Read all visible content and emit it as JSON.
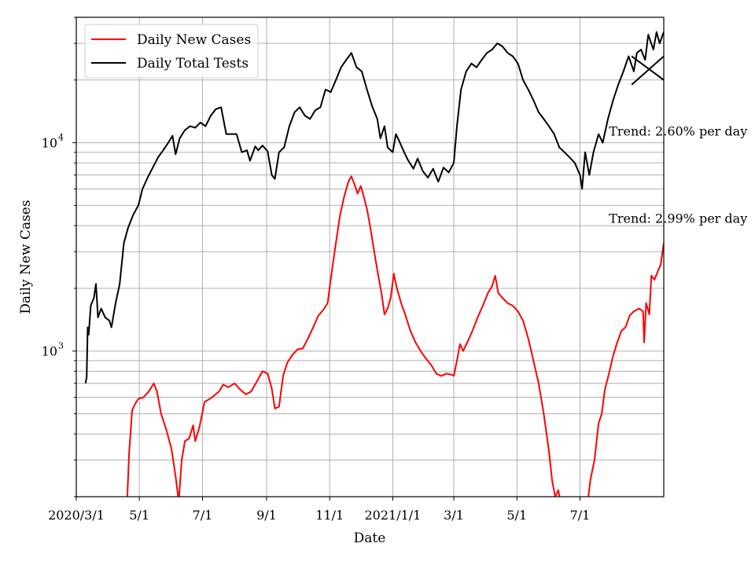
{
  "chart_data": {
    "type": "line",
    "title": "",
    "xlabel": "Date",
    "ylabel": "Daily New Cases",
    "yscale": "log",
    "ylim": [
      200,
      40000
    ],
    "xlim": [
      "2020-03-01",
      "2021-09-20"
    ],
    "grid": true,
    "legend_position": "top-left",
    "x_ticks": [
      {
        "date": "2020-03-01",
        "label": "2020/3/1"
      },
      {
        "date": "2020-05-01",
        "label": "5/1"
      },
      {
        "date": "2020-07-01",
        "label": "7/1"
      },
      {
        "date": "2020-09-01",
        "label": "9/1"
      },
      {
        "date": "2020-11-01",
        "label": "11/1"
      },
      {
        "date": "2021-01-01",
        "label": "2021/1/1"
      },
      {
        "date": "2021-03-01",
        "label": "3/1"
      },
      {
        "date": "2021-05-01",
        "label": "5/1"
      },
      {
        "date": "2021-07-01",
        "label": "7/1"
      }
    ],
    "y_ticks": [
      {
        "value": 1000,
        "base": "10",
        "exp": "3"
      },
      {
        "value": 10000,
        "base": "10",
        "exp": "4"
      }
    ],
    "series": [
      {
        "name": "Daily New Cases",
        "color": "#ff0000",
        "points": [
          [
            "2020-04-19",
            180
          ],
          [
            "2020-04-21",
            320
          ],
          [
            "2020-04-24",
            520
          ],
          [
            "2020-04-27",
            560
          ],
          [
            "2020-04-30",
            590
          ],
          [
            "2020-05-05",
            600
          ],
          [
            "2020-05-10",
            640
          ],
          [
            "2020-05-15",
            700
          ],
          [
            "2020-05-18",
            640
          ],
          [
            "2020-05-22",
            500
          ],
          [
            "2020-05-27",
            420
          ],
          [
            "2020-06-01",
            340
          ],
          [
            "2020-06-05",
            250
          ],
          [
            "2020-06-08",
            190
          ],
          [
            "2020-06-11",
            300
          ],
          [
            "2020-06-14",
            370
          ],
          [
            "2020-06-18",
            380
          ],
          [
            "2020-06-22",
            440
          ],
          [
            "2020-06-24",
            370
          ],
          [
            "2020-06-28",
            430
          ],
          [
            "2020-07-03",
            570
          ],
          [
            "2020-07-08",
            590
          ],
          [
            "2020-07-12",
            610
          ],
          [
            "2020-07-17",
            640
          ],
          [
            "2020-07-21",
            690
          ],
          [
            "2020-07-26",
            670
          ],
          [
            "2020-08-01",
            700
          ],
          [
            "2020-08-07",
            650
          ],
          [
            "2020-08-12",
            620
          ],
          [
            "2020-08-17",
            640
          ],
          [
            "2020-08-23",
            720
          ],
          [
            "2020-08-28",
            800
          ],
          [
            "2020-09-02",
            780
          ],
          [
            "2020-09-06",
            660
          ],
          [
            "2020-09-09",
            530
          ],
          [
            "2020-09-13",
            540
          ],
          [
            "2020-09-17",
            760
          ],
          [
            "2020-09-21",
            880
          ],
          [
            "2020-09-26",
            960
          ],
          [
            "2020-10-01",
            1020
          ],
          [
            "2020-10-06",
            1030
          ],
          [
            "2020-10-11",
            1150
          ],
          [
            "2020-10-16",
            1300
          ],
          [
            "2020-10-21",
            1480
          ],
          [
            "2020-10-26",
            1580
          ],
          [
            "2020-10-30",
            1700
          ],
          [
            "2020-11-03",
            2400
          ],
          [
            "2020-11-07",
            3300
          ],
          [
            "2020-11-11",
            4500
          ],
          [
            "2020-11-15",
            5500
          ],
          [
            "2020-11-19",
            6500
          ],
          [
            "2020-11-22",
            6900
          ],
          [
            "2020-11-25",
            6300
          ],
          [
            "2020-11-28",
            5700
          ],
          [
            "2020-12-01",
            6200
          ],
          [
            "2020-12-04",
            5500
          ],
          [
            "2020-12-07",
            4800
          ],
          [
            "2020-12-10",
            4000
          ],
          [
            "2020-12-14",
            3000
          ],
          [
            "2020-12-18",
            2300
          ],
          [
            "2020-12-21",
            1900
          ],
          [
            "2020-12-24",
            1500
          ],
          [
            "2020-12-27",
            1600
          ],
          [
            "2020-12-30",
            1800
          ],
          [
            "2021-01-02",
            2350
          ],
          [
            "2021-01-05",
            2000
          ],
          [
            "2021-01-09",
            1700
          ],
          [
            "2021-01-13",
            1500
          ],
          [
            "2021-01-18",
            1250
          ],
          [
            "2021-01-23",
            1100
          ],
          [
            "2021-01-28",
            1000
          ],
          [
            "2021-02-02",
            920
          ],
          [
            "2021-02-07",
            860
          ],
          [
            "2021-02-12",
            780
          ],
          [
            "2021-02-17",
            760
          ],
          [
            "2021-02-22",
            780
          ],
          [
            "2021-02-27",
            770
          ],
          [
            "2021-03-01",
            760
          ],
          [
            "2021-03-04",
            900
          ],
          [
            "2021-03-07",
            1080
          ],
          [
            "2021-03-10",
            1000
          ],
          [
            "2021-03-14",
            1100
          ],
          [
            "2021-03-19",
            1250
          ],
          [
            "2021-03-24",
            1450
          ],
          [
            "2021-03-29",
            1650
          ],
          [
            "2021-04-03",
            1900
          ],
          [
            "2021-04-07",
            2050
          ],
          [
            "2021-04-10",
            2300
          ],
          [
            "2021-04-13",
            1900
          ],
          [
            "2021-04-17",
            1800
          ],
          [
            "2021-04-22",
            1700
          ],
          [
            "2021-04-27",
            1650
          ],
          [
            "2021-05-02",
            1550
          ],
          [
            "2021-05-07",
            1400
          ],
          [
            "2021-05-12",
            1150
          ],
          [
            "2021-05-17",
            900
          ],
          [
            "2021-05-22",
            700
          ],
          [
            "2021-05-27",
            500
          ],
          [
            "2021-06-01",
            330
          ],
          [
            "2021-06-04",
            240
          ],
          [
            "2021-06-07",
            200
          ],
          [
            "2021-06-10",
            215
          ],
          [
            "2021-06-13",
            180
          ],
          [
            "2021-07-08",
            180
          ],
          [
            "2021-07-11",
            240
          ],
          [
            "2021-07-15",
            300
          ],
          [
            "2021-07-19",
            450
          ],
          [
            "2021-07-22",
            500
          ],
          [
            "2021-07-25",
            650
          ],
          [
            "2021-07-29",
            780
          ],
          [
            "2021-08-02",
            950
          ],
          [
            "2021-08-06",
            1100
          ],
          [
            "2021-08-10",
            1250
          ],
          [
            "2021-08-14",
            1300
          ],
          [
            "2021-08-18",
            1480
          ],
          [
            "2021-08-22",
            1550
          ],
          [
            "2021-08-27",
            1600
          ],
          [
            "2021-08-31",
            1550
          ],
          [
            "2021-09-01",
            1100
          ],
          [
            "2021-09-03",
            1700
          ],
          [
            "2021-09-06",
            1500
          ],
          [
            "2021-09-08",
            2300
          ],
          [
            "2021-09-11",
            2200
          ],
          [
            "2021-09-14",
            2400
          ],
          [
            "2021-09-17",
            2600
          ],
          [
            "2021-09-20",
            3300
          ]
        ]
      },
      {
        "name": "Daily Total Tests",
        "color": "#000000",
        "points": [
          [
            "2020-03-10",
            700
          ],
          [
            "2020-03-11",
            750
          ],
          [
            "2020-03-12",
            1300
          ],
          [
            "2020-03-13",
            1200
          ],
          [
            "2020-03-15",
            1650
          ],
          [
            "2020-03-18",
            1800
          ],
          [
            "2020-03-20",
            2100
          ],
          [
            "2020-03-22",
            1450
          ],
          [
            "2020-03-25",
            1600
          ],
          [
            "2020-03-29",
            1450
          ],
          [
            "2020-04-02",
            1400
          ],
          [
            "2020-04-04",
            1300
          ],
          [
            "2020-04-08",
            1700
          ],
          [
            "2020-04-12",
            2100
          ],
          [
            "2020-04-16",
            3300
          ],
          [
            "2020-04-20",
            3900
          ],
          [
            "2020-04-25",
            4500
          ],
          [
            "2020-04-30",
            5000
          ],
          [
            "2020-05-04",
            6000
          ],
          [
            "2020-05-09",
            6800
          ],
          [
            "2020-05-14",
            7600
          ],
          [
            "2020-05-19",
            8500
          ],
          [
            "2020-05-24",
            9200
          ],
          [
            "2020-05-29",
            10000
          ],
          [
            "2020-06-02",
            10800
          ],
          [
            "2020-06-05",
            8800
          ],
          [
            "2020-06-09",
            10500
          ],
          [
            "2020-06-14",
            11500
          ],
          [
            "2020-06-19",
            12000
          ],
          [
            "2020-06-24",
            11800
          ],
          [
            "2020-06-29",
            12500
          ],
          [
            "2020-07-04",
            12000
          ],
          [
            "2020-07-09",
            13500
          ],
          [
            "2020-07-14",
            14500
          ],
          [
            "2020-07-19",
            14800
          ],
          [
            "2020-07-24",
            11000
          ],
          [
            "2020-07-29",
            11000
          ],
          [
            "2020-08-03",
            11000
          ],
          [
            "2020-08-08",
            9000
          ],
          [
            "2020-08-13",
            9200
          ],
          [
            "2020-08-16",
            8200
          ],
          [
            "2020-08-21",
            9600
          ],
          [
            "2020-08-24",
            9200
          ],
          [
            "2020-08-28",
            9700
          ],
          [
            "2020-09-02",
            9100
          ],
          [
            "2020-09-06",
            7000
          ],
          [
            "2020-09-09",
            6700
          ],
          [
            "2020-09-13",
            9000
          ],
          [
            "2020-09-18",
            9500
          ],
          [
            "2020-09-23",
            12000
          ],
          [
            "2020-09-28",
            14000
          ],
          [
            "2020-10-03",
            14800
          ],
          [
            "2020-10-08",
            13500
          ],
          [
            "2020-10-13",
            13000
          ],
          [
            "2020-10-18",
            14300
          ],
          [
            "2020-10-23",
            14800
          ],
          [
            "2020-10-28",
            18000
          ],
          [
            "2020-11-02",
            17500
          ],
          [
            "2020-11-07",
            20000
          ],
          [
            "2020-11-12",
            23000
          ],
          [
            "2020-11-17",
            25000
          ],
          [
            "2020-11-22",
            27000
          ],
          [
            "2020-11-27",
            23000
          ],
          [
            "2020-12-02",
            22000
          ],
          [
            "2020-12-07",
            18000
          ],
          [
            "2020-12-12",
            15000
          ],
          [
            "2020-12-17",
            13000
          ],
          [
            "2020-12-20",
            10500
          ],
          [
            "2020-12-24",
            12000
          ],
          [
            "2020-12-27",
            9500
          ],
          [
            "2021-01-01",
            9000
          ],
          [
            "2021-01-04",
            11000
          ],
          [
            "2021-01-08",
            10000
          ],
          [
            "2021-01-12",
            9000
          ],
          [
            "2021-01-16",
            8200
          ],
          [
            "2021-01-21",
            7500
          ],
          [
            "2021-01-25",
            8400
          ],
          [
            "2021-01-30",
            7300
          ],
          [
            "2021-02-04",
            6800
          ],
          [
            "2021-02-09",
            7500
          ],
          [
            "2021-02-14",
            6500
          ],
          [
            "2021-02-19",
            7600
          ],
          [
            "2021-02-24",
            7200
          ],
          [
            "2021-03-01",
            8000
          ],
          [
            "2021-03-04",
            12000
          ],
          [
            "2021-03-08",
            18000
          ],
          [
            "2021-03-13",
            22000
          ],
          [
            "2021-03-18",
            24000
          ],
          [
            "2021-03-23",
            23000
          ],
          [
            "2021-03-28",
            25000
          ],
          [
            "2021-04-02",
            27000
          ],
          [
            "2021-04-07",
            28000
          ],
          [
            "2021-04-12",
            30000
          ],
          [
            "2021-04-17",
            29000
          ],
          [
            "2021-04-22",
            27000
          ],
          [
            "2021-04-27",
            26000
          ],
          [
            "2021-05-02",
            24000
          ],
          [
            "2021-05-07",
            20000
          ],
          [
            "2021-05-12",
            18000
          ],
          [
            "2021-05-17",
            16000
          ],
          [
            "2021-05-22",
            14000
          ],
          [
            "2021-05-27",
            13000
          ],
          [
            "2021-06-01",
            12000
          ],
          [
            "2021-06-06",
            11000
          ],
          [
            "2021-06-11",
            9500
          ],
          [
            "2021-06-16",
            9000
          ],
          [
            "2021-06-21",
            8500
          ],
          [
            "2021-06-26",
            8000
          ],
          [
            "2021-07-01",
            7000
          ],
          [
            "2021-07-03",
            6000
          ],
          [
            "2021-07-06",
            9000
          ],
          [
            "2021-07-10",
            7000
          ],
          [
            "2021-07-14",
            9000
          ],
          [
            "2021-07-19",
            11000
          ],
          [
            "2021-07-23",
            10000
          ],
          [
            "2021-07-28",
            13000
          ],
          [
            "2021-08-02",
            16000
          ],
          [
            "2021-08-07",
            19000
          ],
          [
            "2021-08-12",
            22000
          ],
          [
            "2021-08-17",
            26000
          ],
          [
            "2021-08-22",
            22000
          ],
          [
            "2021-08-25",
            27000
          ],
          [
            "2021-08-29",
            28000
          ],
          [
            "2021-09-02",
            25000
          ],
          [
            "2021-09-05",
            33000
          ],
          [
            "2021-09-10",
            28000
          ],
          [
            "2021-09-13",
            34000
          ],
          [
            "2021-09-16",
            30000
          ],
          [
            "2021-09-20",
            34000
          ]
        ]
      }
    ],
    "annotations": [
      {
        "text": "Trend: 2.60% per day",
        "date": "2021-08-01",
        "value": 11400
      },
      {
        "text": "Trend: 2.99% per day",
        "date": "2021-08-01",
        "value": 4350
      }
    ],
    "trend_lines": [
      {
        "points": [
          [
            "2021-08-20",
            26000
          ],
          [
            "2021-09-20",
            20000
          ]
        ]
      },
      {
        "points": [
          [
            "2021-08-20",
            19000
          ],
          [
            "2021-09-20",
            26000
          ]
        ]
      }
    ]
  }
}
